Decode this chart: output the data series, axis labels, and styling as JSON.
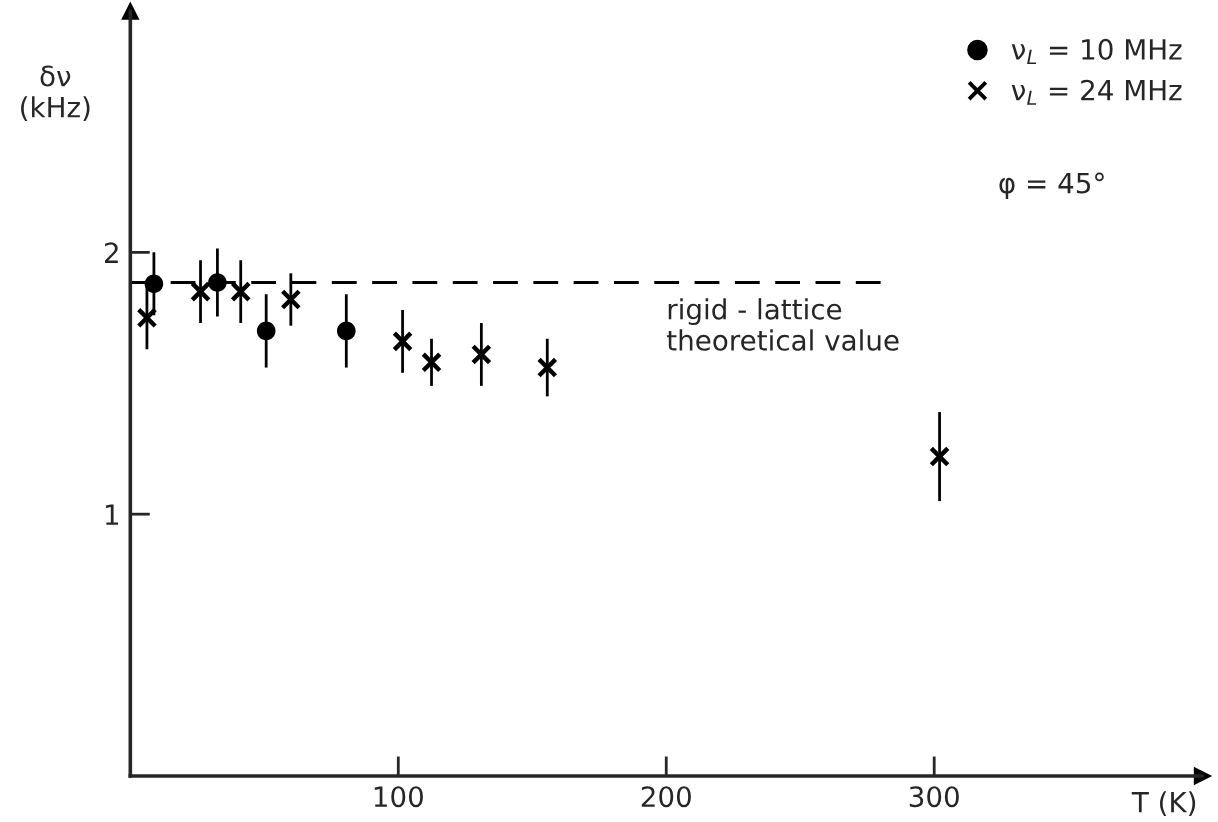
{
  "chart_data": {
    "type": "scatter",
    "xlabel": "T (K)",
    "ylabel": "δν\n(kHz)",
    "xlim": [
      0,
      400
    ],
    "ylim": [
      0,
      2.92
    ],
    "xticks": [
      100,
      200,
      300
    ],
    "yticks": [
      1,
      2
    ],
    "grid": false,
    "legend": "top right",
    "series": [
      {
        "name": "ν$_{L}$ = 10 MHz",
        "color": "#000000",
        "marker": "circle",
        "x": [
          8.8,
          32.5,
          50.7,
          80.6
        ],
        "values": [
          1.88,
          1.885,
          1.7,
          1.7
        ],
        "errors": [
          0.12,
          0.13,
          0.14,
          0.14
        ]
      },
      {
        "name": "ν$_{L}$ = 24 MHz",
        "color": "#000000",
        "marker": "cross",
        "x": [
          6.2,
          26.2,
          41.2,
          59.9,
          101.6,
          112.4,
          131,
          155.6,
          302
        ],
        "values": [
          1.75,
          1.85,
          1.85,
          1.82,
          1.66,
          1.58,
          1.61,
          1.56,
          1.22
        ],
        "errors": [
          0.12,
          0.12,
          0.12,
          0.1,
          0.12,
          0.09,
          0.12,
          0.11,
          0.17
        ]
      },
      {
        "type": "line",
        "color": "#000000",
        "line_style": "dashed",
        "x": [
          0,
          280
        ],
        "values": [
          1.885,
          1.885
        ]
      }
    ],
    "annotations": [
      "φ = 45°",
      "rigid - lattice\ntheoretical value"
    ]
  }
}
